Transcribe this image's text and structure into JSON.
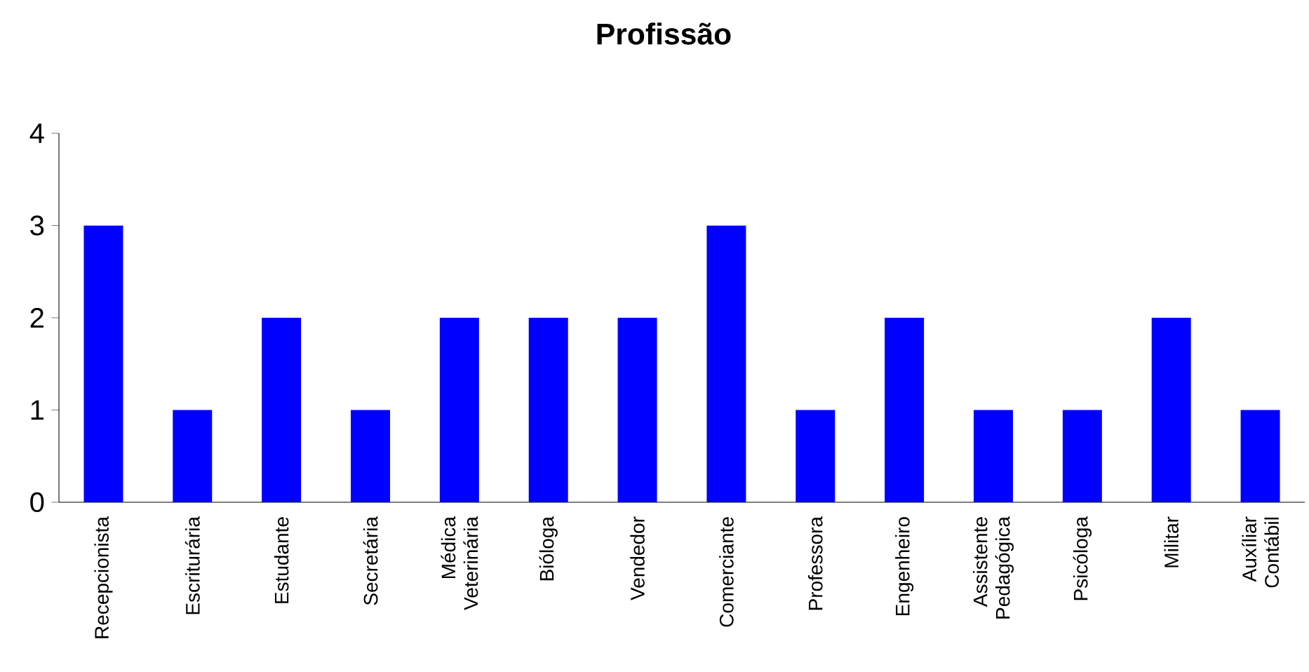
{
  "chart_data": {
    "type": "bar",
    "title": "Profissão",
    "categories": [
      "Recepcionista",
      "Escriturária",
      "Estudante",
      "Secretária",
      "Médica Veterinária",
      "Bióloga",
      "Vendedor",
      "Comerciante",
      "Professora",
      "Engenheiro",
      "Assistente Pedagógica",
      "Psicóloga",
      "Militar",
      "Auxíliar Contábil"
    ],
    "values": [
      3,
      1,
      2,
      1,
      2,
      2,
      2,
      3,
      1,
      2,
      1,
      1,
      2,
      1
    ],
    "color": "#0000ff",
    "ylim": [
      0,
      4
    ],
    "yticks": [
      0,
      1,
      2,
      3,
      4
    ]
  }
}
